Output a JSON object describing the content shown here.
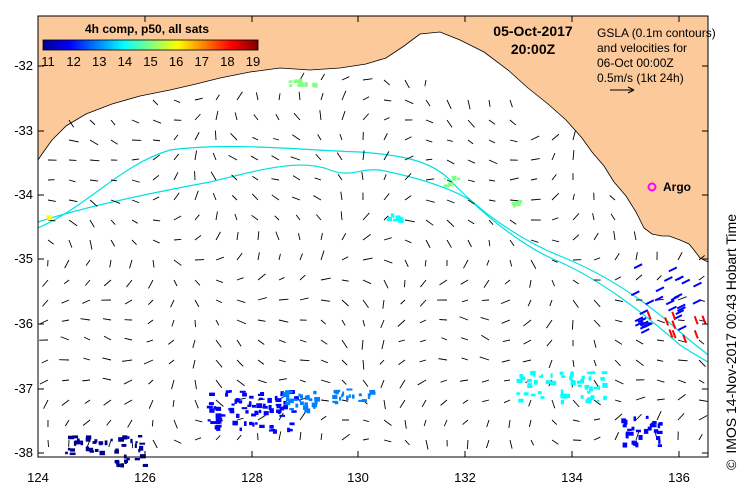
{
  "map": {
    "title_date": "05-Oct-2017",
    "title_time": "20:00Z",
    "legend": {
      "line1": "GSLA (0.1m contours)",
      "line2": "and velocities for",
      "line3": "06-Oct 00:00Z",
      "line4": "0.5m/s (1kt 24h)"
    },
    "colorbar": {
      "title": "4h comp, p50, all sats",
      "ticks": [
        "11",
        "12",
        "13",
        "14",
        "15",
        "16",
        "17",
        "18",
        "19"
      ],
      "colors": [
        "#00008f",
        "#0000ff",
        "#0080ff",
        "#00ffff",
        "#80ff80",
        "#ffff00",
        "#ff8000",
        "#ff0000",
        "#800000"
      ]
    },
    "argo_label": "Argo",
    "credit": {
      "copyright": "©",
      "text": "IMOS 14-Nov-2017 00:43 Hobart Time"
    },
    "x_ticks": [
      "124",
      "126",
      "128",
      "130",
      "132",
      "134",
      "136"
    ],
    "y_ticks": [
      "-32",
      "-33",
      "-34",
      "-35",
      "-36",
      "-37",
      "-38"
    ],
    "land_color": "#fcc99b",
    "contour_color": "#00e0e0"
  }
}
